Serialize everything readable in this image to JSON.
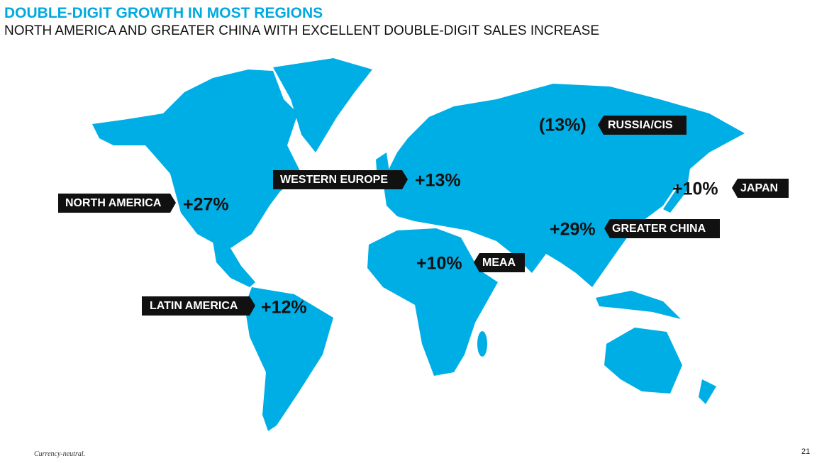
{
  "header": {
    "title": "DOUBLE-DIGIT GROWTH IN MOST REGIONS",
    "subtitle": "NORTH AMERICA AND GREATER CHINA WITH EXCELLENT DOUBLE-DIGIT SALES INCREASE"
  },
  "regions": [
    {
      "name": "NORTH AMERICA",
      "growth": "+27%"
    },
    {
      "name": "WESTERN EUROPE",
      "growth": "+13%"
    },
    {
      "name": "RUSSIA/CIS",
      "growth": "(13%)"
    },
    {
      "name": "JAPAN",
      "growth": "+10%"
    },
    {
      "name": "GREATER CHINA",
      "growth": "+29%"
    },
    {
      "name": "MEAA",
      "growth": "+10%"
    },
    {
      "name": "LATIN AMERICA",
      "growth": "+12%"
    }
  ],
  "footnote": "Currency-neutral.",
  "page_number": "21"
}
